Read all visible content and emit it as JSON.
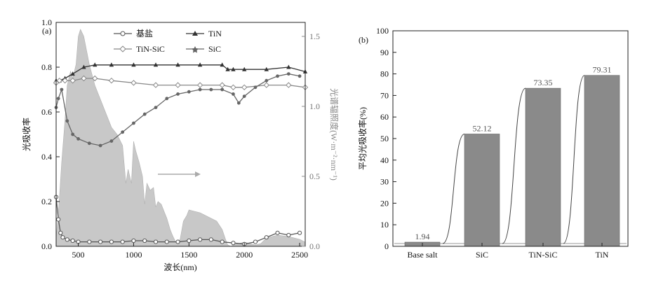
{
  "chart_data": [
    {
      "type": "line",
      "panel_label": "(a)",
      "xlabel": "波长(nm)",
      "ylabel": "光吸收率",
      "y2label": "光谱辐照度(W·m⁻²·nm⁻¹)",
      "xlim": [
        300,
        2550
      ],
      "ylim": [
        0,
        1.0
      ],
      "y2lim": [
        0,
        1.6
      ],
      "xticks": [
        "500",
        "1000",
        "1500",
        "2000",
        "2500"
      ],
      "yticks": [
        "0.0",
        "0.2",
        "0.4",
        "0.6",
        "0.8",
        "1.0"
      ],
      "y2ticks": [
        "0.0",
        "0.5",
        "1.0",
        "1.5"
      ],
      "legend": [
        {
          "name": "基盐",
          "marker": "circle"
        },
        {
          "name": "TiN",
          "marker": "triangle"
        },
        {
          "name": "TiN-SiC",
          "marker": "diamond"
        },
        {
          "name": "SiC",
          "marker": "star"
        }
      ],
      "series": [
        {
          "name": "基盐",
          "color": "#555555",
          "x": [
            300,
            320,
            340,
            360,
            400,
            450,
            500,
            600,
            700,
            800,
            900,
            1000,
            1100,
            1200,
            1300,
            1400,
            1500,
            1600,
            1700,
            1800,
            1900,
            2000,
            2100,
            2200,
            2300,
            2400,
            2500
          ],
          "y": [
            0.22,
            0.12,
            0.06,
            0.04,
            0.03,
            0.025,
            0.02,
            0.02,
            0.02,
            0.02,
            0.02,
            0.025,
            0.025,
            0.02,
            0.02,
            0.02,
            0.025,
            0.03,
            0.03,
            0.02,
            0.015,
            0.01,
            0.02,
            0.04,
            0.06,
            0.05,
            0.06
          ]
        },
        {
          "name": "TiN",
          "color": "#333333",
          "x": [
            300,
            330,
            380,
            450,
            550,
            650,
            800,
            1000,
            1200,
            1400,
            1600,
            1800,
            1850,
            1900,
            2000,
            2200,
            2400,
            2550
          ],
          "y": [
            0.74,
            0.74,
            0.75,
            0.77,
            0.8,
            0.81,
            0.81,
            0.81,
            0.81,
            0.81,
            0.81,
            0.81,
            0.79,
            0.79,
            0.79,
            0.79,
            0.8,
            0.78
          ]
        },
        {
          "name": "TiN-SiC",
          "color": "#888888",
          "x": [
            300,
            330,
            380,
            450,
            550,
            650,
            800,
            1000,
            1200,
            1400,
            1600,
            1800,
            1900,
            2000,
            2200,
            2400,
            2550
          ],
          "y": [
            0.73,
            0.74,
            0.74,
            0.74,
            0.75,
            0.75,
            0.74,
            0.73,
            0.72,
            0.72,
            0.72,
            0.72,
            0.71,
            0.71,
            0.72,
            0.72,
            0.71
          ]
        },
        {
          "name": "SiC",
          "color": "#666666",
          "x": [
            300,
            320,
            350,
            400,
            450,
            500,
            600,
            700,
            800,
            900,
            1000,
            1100,
            1200,
            1300,
            1400,
            1500,
            1600,
            1700,
            1800,
            1900,
            1950,
            2000,
            2100,
            2200,
            2300,
            2400,
            2500
          ],
          "y": [
            0.62,
            0.66,
            0.7,
            0.56,
            0.5,
            0.48,
            0.46,
            0.45,
            0.47,
            0.51,
            0.55,
            0.59,
            0.62,
            0.66,
            0.68,
            0.69,
            0.7,
            0.7,
            0.7,
            0.68,
            0.64,
            0.67,
            0.71,
            0.74,
            0.76,
            0.77,
            0.76
          ]
        }
      ],
      "spectrum": {
        "axis": "y2",
        "color": "#c8c8c8",
        "x": [
          300,
          330,
          350,
          380,
          400,
          430,
          450,
          480,
          500,
          520,
          550,
          600,
          650,
          700,
          750,
          800,
          850,
          900,
          930,
          950,
          980,
          1000,
          1020,
          1050,
          1080,
          1100,
          1120,
          1150,
          1180,
          1200,
          1220,
          1250,
          1280,
          1300,
          1330,
          1350,
          1380,
          1400,
          1420,
          1450,
          1480,
          1500,
          1550,
          1600,
          1650,
          1700,
          1750,
          1800,
          1830,
          1850,
          1880,
          1900,
          1950,
          2000,
          2050,
          2100,
          2150,
          2200,
          2300,
          2400,
          2500,
          2550
        ],
        "y": [
          0.05,
          0.35,
          0.6,
          0.9,
          1.15,
          1.25,
          1.2,
          1.3,
          1.5,
          1.55,
          1.5,
          1.3,
          1.15,
          1.05,
          0.95,
          0.85,
          0.8,
          0.72,
          0.45,
          0.55,
          0.45,
          0.75,
          0.68,
          0.6,
          0.5,
          0.3,
          0.45,
          0.4,
          0.42,
          0.28,
          0.32,
          0.3,
          0.24,
          0.2,
          0.12,
          0.08,
          0.03,
          0.02,
          0.05,
          0.18,
          0.22,
          0.26,
          0.25,
          0.24,
          0.22,
          0.2,
          0.18,
          0.12,
          0.05,
          0.01,
          0.0,
          0.01,
          0.02,
          0.03,
          0.02,
          0.01,
          0.02,
          0.06,
          0.08,
          0.07,
          0.05,
          0.03
        ]
      }
    },
    {
      "type": "bar",
      "panel_label": "(b)",
      "ylabel": "平均光吸收率(%)",
      "ylim": [
        0,
        100
      ],
      "yticks": [
        "0",
        "10",
        "20",
        "30",
        "40",
        "50",
        "60",
        "70",
        "80",
        "90",
        "100"
      ],
      "categories": [
        "Base salt",
        "SiC",
        "TiN-SiC",
        "TiN"
      ],
      "values": [
        1.94,
        52.12,
        73.35,
        79.31
      ],
      "value_labels": [
        "1.94",
        "52.12",
        "73.35",
        "79.31"
      ],
      "bar_color": "#8a8a8a"
    }
  ]
}
